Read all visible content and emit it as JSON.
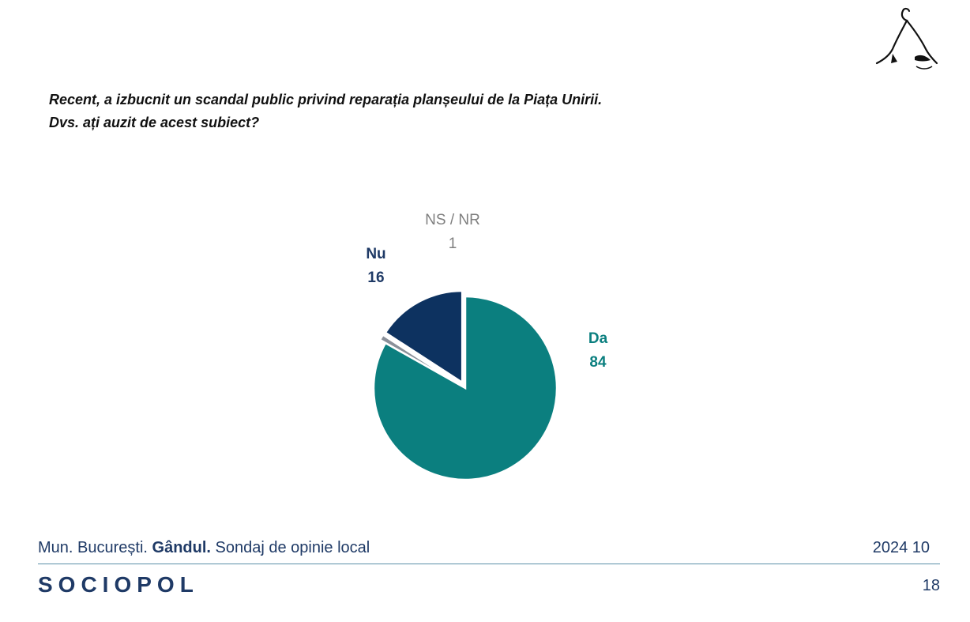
{
  "question": {
    "line1": "Recent, a izbucnit un scandal public privind reparația planșeului de la Piața Unirii.",
    "line2": "Dvs. ați auzit de acest subiect?"
  },
  "chart_data": {
    "type": "pie",
    "slices": [
      {
        "label": "Da",
        "value": 84,
        "color": "#0b7f7f",
        "label_color": "#0b7f7f",
        "exploded": false
      },
      {
        "label": "NS / NR",
        "value": 1,
        "color": "#8a9099",
        "label_color": "#7f7f7f",
        "exploded": true
      },
      {
        "label": "Nu",
        "value": 16,
        "color": "#0d3260",
        "label_color": "#1f3a66",
        "exploded": true
      }
    ]
  },
  "footer": {
    "city": "Mun. București.",
    "client": "Gândul.",
    "survey": "Sondaj de opinie local",
    "date": "2024 10",
    "brand": "SOCIOPOL",
    "page_number": "18"
  }
}
